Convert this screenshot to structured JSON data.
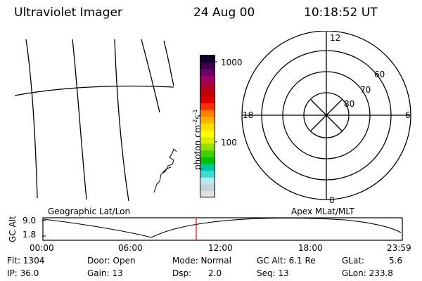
{
  "header": {
    "instrument": "Ultraviolet Imager",
    "date": "24 Aug 00",
    "time": "10:18:52 UT"
  },
  "colorbar": {
    "label_main": "photon cm",
    "label_exp1": "-2",
    "label_s": "s",
    "label_exp2": "-1",
    "ticks": [
      {
        "value": "1000"
      },
      {
        "value": "100"
      }
    ],
    "colors": [
      "#dde4e6",
      "#c8d2d4",
      "#b8e8ea",
      "#40d8d8",
      "#00c8a0",
      "#00c000",
      "#40d000",
      "#90e000",
      "#d8f000",
      "#ffff00",
      "#ffe000",
      "#ffb000",
      "#ff8000",
      "#ff3000",
      "#e00000",
      "#c00000",
      "#b00030",
      "#a00060",
      "#700070",
      "#40004a",
      "#100030"
    ]
  },
  "polar": {
    "labels": {
      "noon": "12",
      "midnight": "0",
      "dusk": "18",
      "dawn": "6",
      "lat60": "60",
      "lat70": "70",
      "lat80": "80"
    }
  },
  "timeline": {
    "left_label": "Geographic Lat/Lon",
    "right_label": "Apex MLat/MLT",
    "ylabel": "GC Alt",
    "y_top": "9.0",
    "y_bottom": "1.8",
    "marker_color": "#ff0000",
    "times": [
      "00:00",
      "06:00",
      "12:00",
      "18:00",
      "23:59"
    ]
  },
  "footer": {
    "flt": "Flt: 1304",
    "ip": "IP: 36.0",
    "door": "Door: Open",
    "gain": "Gain: 13",
    "mode": "Mode: Normal",
    "dsp_label": "Dsp:",
    "dsp_value": "2.0",
    "gcalt": "GC Alt: 6.1 Re",
    "seq": "Seq: 13",
    "glat_label": "GLat:",
    "glat_value": "5.6",
    "glon": "GLon: 233.8"
  }
}
